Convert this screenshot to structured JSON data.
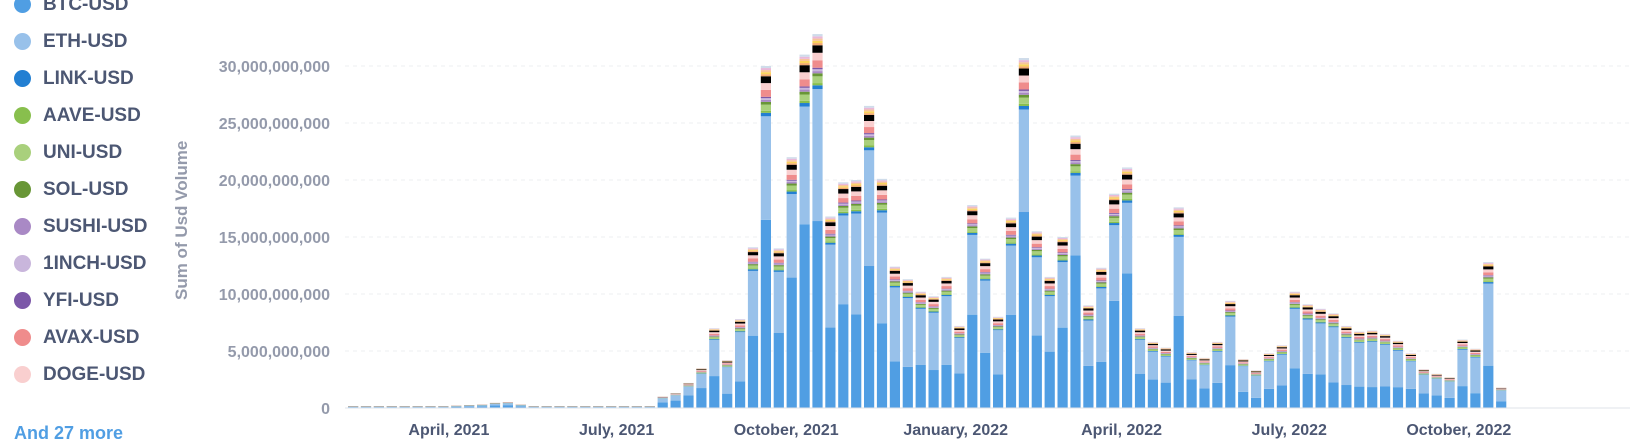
{
  "legend": {
    "items": [
      {
        "label": "BTC-USD",
        "color": "#509ee3"
      },
      {
        "label": "ETH-USD",
        "color": "#98c1ea"
      },
      {
        "label": "LINK-USD",
        "color": "#227fd2"
      },
      {
        "label": "AAVE-USD",
        "color": "#88bf4d"
      },
      {
        "label": "UNI-USD",
        "color": "#a9d07c"
      },
      {
        "label": "SOL-USD",
        "color": "#689636"
      },
      {
        "label": "SUSHI-USD",
        "color": "#a989c5"
      },
      {
        "label": "1INCH-USD",
        "color": "#c9b6dc"
      },
      {
        "label": "YFI-USD",
        "color": "#7c58a8"
      },
      {
        "label": "AVAX-USD",
        "color": "#ef8c8c"
      },
      {
        "label": "DOGE-USD",
        "color": "#f9cfcf"
      }
    ],
    "more_label": "And 27 more"
  },
  "chart_data": {
    "type": "bar",
    "stacked": true,
    "ylabel": "Sum of Usd Volume",
    "xlabel": "",
    "ylim": [
      0,
      33000000000
    ],
    "y_ticks": [
      0,
      5000000000,
      10000000000,
      15000000000,
      20000000000,
      25000000000,
      30000000000
    ],
    "y_tick_labels": [
      "0",
      "5,000,000,000",
      "10,000,000,000",
      "15,000,000,000",
      "20,000,000,000",
      "25,000,000,000",
      "30,000,000,000"
    ],
    "x_tick_labels": [
      "April, 2021",
      "July, 2021",
      "October, 2021",
      "January, 2022",
      "April, 2022",
      "July, 2022",
      "October, 2022"
    ],
    "grid": "horizontal dashed",
    "x_unit": "week",
    "x_start": "2021-02-08",
    "totals": [
      150000000,
      150000000,
      150000000,
      150000000,
      150000000,
      150000000,
      150000000,
      150000000,
      200000000,
      250000000,
      300000000,
      450000000,
      500000000,
      300000000,
      150000000,
      150000000,
      150000000,
      150000000,
      150000000,
      150000000,
      150000000,
      150000000,
      150000000,
      150000000,
      1000000000,
      1300000000,
      2200000000,
      3500000000,
      7000000000,
      4200000000,
      7800000000,
      14100000000,
      30000000000,
      14000000000,
      22000000000,
      31000000000,
      32800000000,
      16800000000,
      19800000000,
      20000000000,
      26500000000,
      20100000000,
      12400000000,
      11300000000,
      10200000000,
      9800000000,
      11500000000,
      7200000000,
      17800000000,
      13100000000,
      8000000000,
      16700000000,
      30700000000,
      15500000000,
      11500000000,
      15000000000,
      23900000000,
      9000000000,
      12300000000,
      18800000000,
      21100000000,
      7000000000,
      5800000000,
      5300000000,
      17600000000,
      4900000000,
      4400000000,
      5800000000,
      9400000000,
      4300000000,
      3300000000,
      4800000000,
      5500000000,
      10200000000,
      9100000000,
      8700000000,
      8300000000,
      7200000000,
      6700000000,
      6800000000,
      6500000000,
      5900000000,
      4800000000,
      3400000000,
      3000000000,
      2700000000,
      6000000000,
      5200000000,
      12800000000,
      1800000000
    ],
    "btc_share": [
      0.5,
      0.5,
      0.5,
      0.5,
      0.5,
      0.5,
      0.5,
      0.5,
      0.5,
      0.5,
      0.5,
      0.5,
      0.5,
      0.5,
      0.5,
      0.5,
      0.5,
      0.5,
      0.5,
      0.5,
      0.5,
      0.5,
      0.5,
      0.5,
      0.5,
      0.5,
      0.5,
      0.5,
      0.4,
      0.3,
      0.3,
      0.45,
      0.55,
      0.47,
      0.52,
      0.52,
      0.5,
      0.42,
      0.46,
      0.41,
      0.47,
      0.37,
      0.33,
      0.32,
      0.37,
      0.34,
      0.33,
      0.42,
      0.46,
      0.37,
      0.37,
      0.49,
      0.56,
      0.41,
      0.43,
      0.47,
      0.56,
      0.41,
      0.33,
      0.5,
      0.56,
      0.43,
      0.43,
      0.42,
      0.46,
      0.51,
      0.39,
      0.38,
      0.4,
      0.33,
      0.27,
      0.35,
      0.36,
      0.34,
      0.33,
      0.34,
      0.27,
      0.28,
      0.28,
      0.27,
      0.29,
      0.31,
      0.35,
      0.38,
      0.37,
      0.33,
      0.32,
      0.25,
      0.29,
      0.33
    ],
    "series_order": [
      "BTC-USD",
      "ETH-USD",
      "LINK-USD",
      "AAVE-USD",
      "UNI-USD",
      "SOL-USD",
      "SUSHI-USD",
      "1INCH-USD",
      "YFI-USD",
      "AVAX-USD",
      "DOGE-USD",
      "And 27 more"
    ],
    "minor_series_shares": [
      0.01,
      0.006,
      0.018,
      0.008,
      0.006,
      0.005,
      0.004,
      0.02,
      0.02,
      0.02
    ],
    "other_colors": [
      "#f2a86f",
      "#f9d45c",
      "#f7c49a",
      "#e9b8d9",
      "#cfdcea"
    ]
  }
}
